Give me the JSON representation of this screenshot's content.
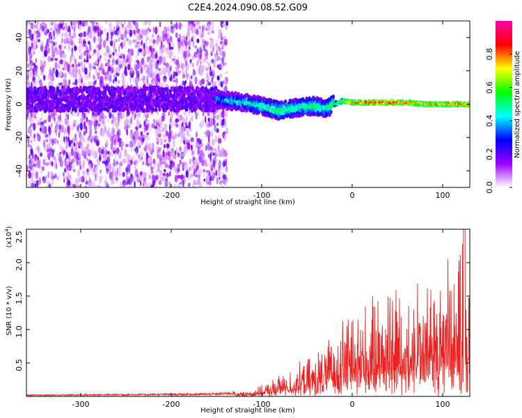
{
  "title": "C2E4.2024.090.08.52.G09",
  "chart_data": [
    {
      "type": "heatmap",
      "xlabel": "Height of straight line (km)",
      "ylabel": "Frequency (Hz)",
      "xlim": [
        -360,
        130
      ],
      "ylim": [
        -50,
        50
      ],
      "x_ticks": [
        -300,
        -200,
        -100,
        0,
        100
      ],
      "y_ticks": [
        -40,
        -20,
        0,
        20,
        40
      ],
      "colorbar": {
        "label": "Normalized spectral amplitude",
        "range": [
          0.0,
          1.0
        ],
        "ticks": [
          "0.0",
          "0.2",
          "0.4",
          "0.6",
          "0.8"
        ],
        "tick_values": [
          0.0,
          0.2,
          0.4,
          0.6,
          0.8
        ],
        "colors": [
          "#ffffff",
          "#9d00ff",
          "#0000ff",
          "#00ffff",
          "#00ff00",
          "#ffff00",
          "#ff0000",
          "#ff00aa"
        ]
      },
      "signal_track": [
        {
          "x": -150,
          "y": 3,
          "amp": 0.4
        },
        {
          "x": -120,
          "y": 1,
          "amp": 0.45
        },
        {
          "x": -100,
          "y": -1,
          "amp": 0.5
        },
        {
          "x": -80,
          "y": -4,
          "amp": 0.55
        },
        {
          "x": -60,
          "y": -2,
          "amp": 0.5
        },
        {
          "x": -40,
          "y": -1,
          "amp": 0.55
        },
        {
          "x": -30,
          "y": -3,
          "amp": 0.5
        },
        {
          "x": -20,
          "y": 0,
          "amp": 0.6
        },
        {
          "x": -10,
          "y": 2,
          "amp": 0.7
        },
        {
          "x": 0,
          "y": 1,
          "amp": 0.85
        },
        {
          "x": 20,
          "y": 1,
          "amp": 0.9
        },
        {
          "x": 40,
          "y": 1,
          "amp": 0.92
        },
        {
          "x": 60,
          "y": 1,
          "amp": 0.85
        },
        {
          "x": 80,
          "y": 0,
          "amp": 0.8
        },
        {
          "x": 100,
          "y": 0,
          "amp": 0.82
        },
        {
          "x": 120,
          "y": 0,
          "amp": 0.85
        },
        {
          "x": 130,
          "y": 0,
          "amp": 0.85
        }
      ]
    },
    {
      "type": "line",
      "xlabel": "Height of straight line (km)",
      "ylabel": "SNR (10 * v/v)",
      "y_multiplier": "(x10",
      "y_multiplier_exp": "4",
      "y_multiplier_close": ")",
      "xlim": [
        -360,
        130
      ],
      "ylim": [
        0,
        2.5
      ],
      "x_ticks": [
        -300,
        -200,
        -100,
        0,
        100
      ],
      "y_ticks": [
        0.5,
        1.0,
        1.5,
        2.0,
        2.5
      ],
      "y_tick_labels": [
        "0.5",
        "1.0",
        "1.5",
        "2.0",
        "2.5"
      ],
      "line_color": "#ee2020",
      "envelope": [
        {
          "x": -360,
          "y": 0.02
        },
        {
          "x": -250,
          "y": 0.03
        },
        {
          "x": -150,
          "y": 0.04
        },
        {
          "x": -120,
          "y": 0.07
        },
        {
          "x": -100,
          "y": 0.15
        },
        {
          "x": -80,
          "y": 0.3
        },
        {
          "x": -60,
          "y": 0.45
        },
        {
          "x": -40,
          "y": 0.6
        },
        {
          "x": -20,
          "y": 0.9
        },
        {
          "x": -10,
          "y": 1.2
        },
        {
          "x": 0,
          "y": 1.35
        },
        {
          "x": 20,
          "y": 1.3
        },
        {
          "x": 40,
          "y": 1.7
        },
        {
          "x": 60,
          "y": 1.6
        },
        {
          "x": 80,
          "y": 1.7
        },
        {
          "x": 100,
          "y": 1.9
        },
        {
          "x": 115,
          "y": 2.0
        },
        {
          "x": 124,
          "y": 2.5
        },
        {
          "x": 130,
          "y": 1.5
        }
      ]
    }
  ]
}
